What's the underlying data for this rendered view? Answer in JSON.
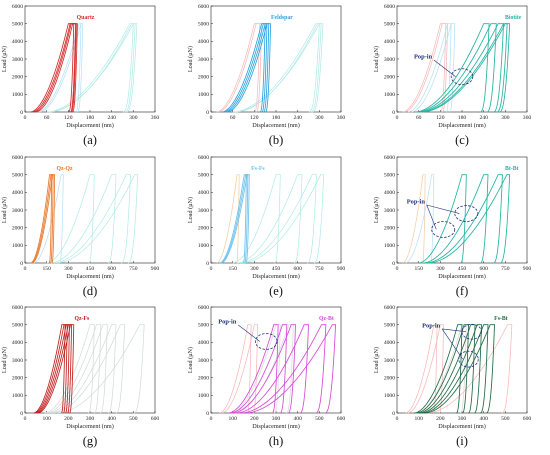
{
  "colors": {
    "quartz": "#d42a2a",
    "feldspar": "#29a3e0",
    "biotite": "#23b4a2",
    "qz_fs": "#c0201e",
    "qz_bt": "#d64ad6",
    "fs_bt": "#1f6b44",
    "qz_qz_orange": "#e8782a",
    "fs_fs_blue": "#6cc2ec",
    "bt_bt": "#23b4a2",
    "ghost_cyan": "#aeeae6",
    "ghost_pink": "#f6b4b4",
    "ghost_blue": "#b4dff5",
    "ghost_orange": "#f6c9a0",
    "ghost_grey": "#d2d8d8",
    "popin_ellipse": "#1f2d7a"
  },
  "chart_data": [
    {
      "panel": "(a)",
      "type": "line",
      "xlabel": "Displacement (nm)",
      "ylabel": "Load (μN)",
      "xlim": [
        0,
        360
      ],
      "ylim": [
        0,
        6000
      ],
      "xticks": [
        "0",
        "60",
        "120",
        "180",
        "240",
        "300",
        "360"
      ],
      "yticks": [
        "0",
        "1000",
        "2000",
        "3000",
        "4000",
        "5000",
        "6000"
      ],
      "highlight_label": "Quartz",
      "highlight_color_key": "quartz",
      "highlight_curves": [
        [
          15,
          120,
          135
        ],
        [
          20,
          125,
          140
        ],
        [
          25,
          128,
          142
        ],
        [
          30,
          132,
          145
        ]
      ],
      "ghost_curves": [
        [
          35,
          150,
          155,
          "ghost_blue"
        ],
        [
          40,
          155,
          160,
          "ghost_blue"
        ],
        [
          60,
          290,
          300,
          "ghost_cyan"
        ],
        [
          65,
          300,
          310,
          "ghost_cyan"
        ],
        [
          70,
          295,
          305,
          "ghost_cyan"
        ]
      ],
      "popin": []
    },
    {
      "panel": "(b)",
      "type": "line",
      "xlabel": "Displacement (nm)",
      "ylabel": "Load (μN)",
      "xlim": [
        0,
        360
      ],
      "ylim": [
        0,
        6000
      ],
      "xticks": [
        "0",
        "60",
        "120",
        "180",
        "240",
        "300",
        "360"
      ],
      "yticks": [
        "0",
        "1000",
        "2000",
        "3000",
        "4000",
        "5000",
        "6000"
      ],
      "highlight_label": "Feldspar",
      "highlight_color_key": "feldspar",
      "highlight_curves": [
        [
          30,
          140,
          150
        ],
        [
          35,
          145,
          155
        ],
        [
          40,
          150,
          160
        ],
        [
          45,
          155,
          165
        ]
      ],
      "ghost_curves": [
        [
          15,
          120,
          135,
          "ghost_pink"
        ],
        [
          20,
          125,
          140,
          "ghost_pink"
        ],
        [
          60,
          290,
          300,
          "ghost_cyan"
        ],
        [
          65,
          300,
          310,
          "ghost_cyan"
        ],
        [
          70,
          295,
          305,
          "ghost_cyan"
        ]
      ],
      "popin": []
    },
    {
      "panel": "(c)",
      "type": "line",
      "xlabel": "Displacement (nm)",
      "ylabel": "Load (μN)",
      "xlim": [
        0,
        360
      ],
      "ylim": [
        0,
        6000
      ],
      "xticks": [
        "0",
        "60",
        "120",
        "180",
        "240",
        "300",
        "360"
      ],
      "yticks": [
        "0",
        "1000",
        "2000",
        "3000",
        "4000",
        "5000",
        "6000"
      ],
      "highlight_label": "Biotite",
      "highlight_color_key": "biotite",
      "highlight_curves": [
        [
          50,
          240,
          255
        ],
        [
          55,
          260,
          275
        ],
        [
          60,
          280,
          295
        ],
        [
          65,
          295,
          305
        ],
        [
          70,
          300,
          312
        ]
      ],
      "ghost_curves": [
        [
          15,
          120,
          135,
          "ghost_pink"
        ],
        [
          20,
          125,
          140,
          "ghost_pink"
        ],
        [
          30,
          140,
          150,
          "ghost_blue"
        ],
        [
          40,
          150,
          160,
          "ghost_blue"
        ]
      ],
      "popin": [
        {
          "label": "Pop-in",
          "ellipses": [
            [
              180,
              2000,
              30,
              450
            ]
          ]
        }
      ]
    },
    {
      "panel": "(d)",
      "type": "line",
      "xlabel": "Displacement (nm)",
      "ylabel": "Load (μN)",
      "xlim": [
        0,
        900
      ],
      "ylim": [
        0,
        6000
      ],
      "xticks": [
        "0",
        "150",
        "300",
        "450",
        "600",
        "750",
        "900"
      ],
      "yticks": [
        "0",
        "1000",
        "2000",
        "3000",
        "4000",
        "5000",
        "6000"
      ],
      "highlight_label": "Qz-Qz",
      "highlight_color_key": "qz_qz_orange",
      "highlight_curves": [
        [
          40,
          170,
          185
        ],
        [
          45,
          180,
          195
        ],
        [
          50,
          190,
          205
        ]
      ],
      "ghost_curves": [
        [
          60,
          250,
          265,
          "ghost_blue"
        ],
        [
          150,
          450,
          480,
          "ghost_cyan"
        ],
        [
          180,
          600,
          630,
          "ghost_cyan"
        ],
        [
          200,
          700,
          730,
          "ghost_cyan"
        ],
        [
          220,
          760,
          780,
          "ghost_cyan"
        ]
      ],
      "popin": []
    },
    {
      "panel": "(e)",
      "type": "line",
      "xlabel": "Displacement (nm)",
      "ylabel": "Load (μN)",
      "xlim": [
        0,
        900
      ],
      "ylim": [
        0,
        6000
      ],
      "xticks": [
        "0",
        "150",
        "300",
        "450",
        "600",
        "750",
        "900"
      ],
      "yticks": [
        "0",
        "1000",
        "2000",
        "3000",
        "4000",
        "5000",
        "6000"
      ],
      "highlight_label": "Fs-Fs",
      "highlight_color_key": "fs_fs_blue",
      "highlight_curves": [
        [
          60,
          230,
          245
        ],
        [
          65,
          240,
          255
        ],
        [
          70,
          250,
          265
        ]
      ],
      "ghost_curves": [
        [
          40,
          180,
          195,
          "ghost_orange"
        ],
        [
          150,
          450,
          480,
          "ghost_cyan"
        ],
        [
          180,
          600,
          630,
          "ghost_cyan"
        ],
        [
          200,
          700,
          730,
          "ghost_cyan"
        ],
        [
          220,
          760,
          780,
          "ghost_cyan"
        ]
      ],
      "popin": []
    },
    {
      "panel": "(f)",
      "type": "line",
      "xlabel": "Displacement (nm)",
      "ylabel": "Load (μN)",
      "xlim": [
        0,
        900
      ],
      "ylim": [
        0,
        6000
      ],
      "xticks": [
        "0",
        "150",
        "300",
        "450",
        "600",
        "750",
        "900"
      ],
      "yticks": [
        "0",
        "1000",
        "2000",
        "3000",
        "4000",
        "5000",
        "6000"
      ],
      "highlight_label": "Bt-Bt",
      "highlight_color_key": "bt_bt",
      "highlight_curves": [
        [
          150,
          450,
          480
        ],
        [
          180,
          600,
          630
        ],
        [
          200,
          700,
          730
        ],
        [
          220,
          760,
          780
        ]
      ],
      "ghost_curves": [
        [
          40,
          180,
          195,
          "ghost_orange"
        ],
        [
          60,
          240,
          255,
          "ghost_blue"
        ]
      ],
      "popin": [
        {
          "label": "Pop-in",
          "ellipses": [
            [
              320,
              1900,
              80,
              450
            ],
            [
              480,
              2800,
              80,
              450
            ]
          ]
        }
      ]
    },
    {
      "panel": "(g)",
      "type": "line",
      "xlabel": "Displacement (nm)",
      "ylabel": "Load (μN)",
      "xlim": [
        0,
        600
      ],
      "ylim": [
        0,
        6000
      ],
      "xticks": [
        "0",
        "100",
        "200",
        "300",
        "400",
        "500",
        "600"
      ],
      "yticks": [
        "0",
        "1000",
        "2000",
        "3000",
        "4000",
        "5000",
        "6000"
      ],
      "highlight_label": "Qz-Fs",
      "highlight_color_key": "qz_fs",
      "highlight_curves": [
        [
          40,
          170,
          185
        ],
        [
          45,
          180,
          195
        ],
        [
          50,
          190,
          205
        ],
        [
          55,
          200,
          215
        ],
        [
          60,
          210,
          225
        ]
      ],
      "ghost_curves": [
        [
          90,
          300,
          320,
          "ghost_grey"
        ],
        [
          100,
          330,
          350,
          "ghost_grey"
        ],
        [
          110,
          360,
          380,
          "ghost_grey"
        ],
        [
          120,
          400,
          420,
          "ghost_grey"
        ],
        [
          130,
          440,
          460,
          "ghost_grey"
        ],
        [
          150,
          530,
          550,
          "ghost_grey"
        ]
      ],
      "popin": []
    },
    {
      "panel": "(h)",
      "type": "line",
      "xlabel": "Displacement (nm)",
      "ylabel": "Load (μN)",
      "xlim": [
        0,
        600
      ],
      "ylim": [
        0,
        6000
      ],
      "xticks": [
        "0",
        "100",
        "200",
        "300",
        "400",
        "500",
        "600"
      ],
      "yticks": [
        "0",
        "1000",
        "2000",
        "3000",
        "4000",
        "5000",
        "6000"
      ],
      "highlight_label": "Qz-Bt",
      "highlight_color_key": "qz_bt",
      "highlight_curves": [
        [
          80,
          290,
          310
        ],
        [
          90,
          330,
          350
        ],
        [
          100,
          370,
          390
        ],
        [
          120,
          430,
          450
        ],
        [
          140,
          510,
          530
        ],
        [
          160,
          560,
          575
        ]
      ],
      "ghost_curves": [
        [
          40,
          170,
          185,
          "ghost_pink"
        ],
        [
          50,
          200,
          215,
          "ghost_pink"
        ],
        [
          90,
          300,
          320,
          "ghost_grey"
        ],
        [
          110,
          360,
          380,
          "ghost_grey"
        ]
      ],
      "popin": [
        {
          "label": "Pop-in",
          "ellipses": [
            [
              255,
              4050,
              50,
              450
            ]
          ]
        }
      ]
    },
    {
      "panel": "(i)",
      "type": "line",
      "xlabel": "Displacement (nm)",
      "ylabel": "Load (μN)",
      "xlim": [
        0,
        600
      ],
      "ylim": [
        0,
        6000
      ],
      "xticks": [
        "0",
        "100",
        "200",
        "300",
        "400",
        "500",
        "600"
      ],
      "yticks": [
        "0",
        "1000",
        "2000",
        "3000",
        "4000",
        "5000",
        "6000"
      ],
      "highlight_label": "Fs-Bt",
      "highlight_color_key": "fs_bt",
      "highlight_curves": [
        [
          80,
          280,
          300
        ],
        [
          90,
          310,
          330
        ],
        [
          100,
          340,
          360
        ],
        [
          110,
          370,
          390
        ],
        [
          120,
          400,
          420
        ],
        [
          130,
          430,
          450
        ]
      ],
      "ghost_curves": [
        [
          40,
          170,
          185,
          "ghost_pink"
        ],
        [
          50,
          200,
          215,
          "ghost_pink"
        ],
        [
          140,
          510,
          530,
          "ghost_pink"
        ],
        [
          90,
          300,
          320,
          "ghost_grey"
        ]
      ],
      "popin": [
        {
          "label": "Pop-in",
          "ellipses": [
            [
              345,
              4600,
              45,
              420
            ],
            [
              330,
              3050,
              45,
              450
            ]
          ]
        }
      ]
    }
  ]
}
